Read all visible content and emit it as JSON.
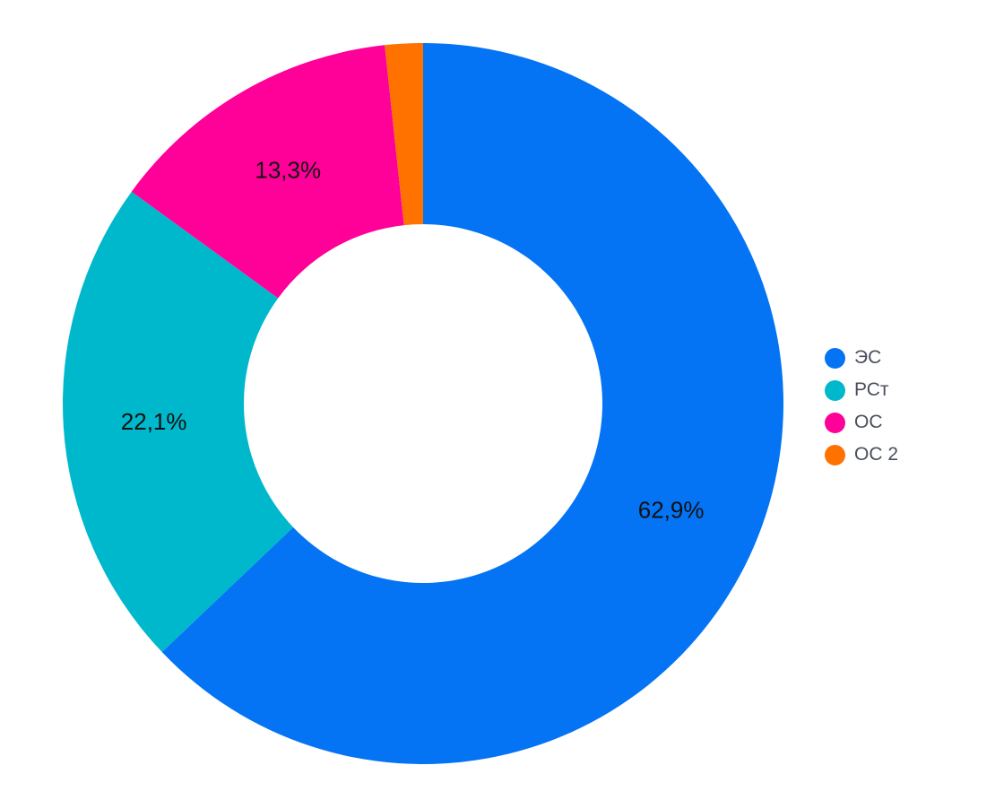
{
  "chart_data": {
    "type": "pie",
    "donut": true,
    "categories": [
      "ЭС",
      "РСт",
      "ОС",
      "ОС 2"
    ],
    "values": [
      62.9,
      22.1,
      13.3,
      1.7
    ],
    "labels": [
      "62,9%",
      "22,1%",
      "13,3%",
      ""
    ],
    "colors": [
      "#0474f4",
      "#00b8cc",
      "#ff0099",
      "#ff7200"
    ],
    "legend_position": "right",
    "start": "top",
    "direction": "clockwise"
  }
}
